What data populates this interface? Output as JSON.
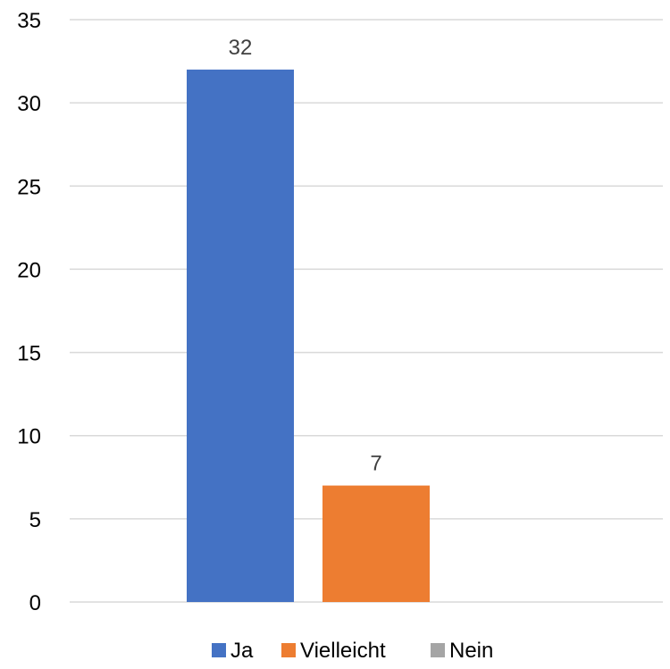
{
  "chart_data": {
    "type": "bar",
    "categories": [
      ""
    ],
    "series": [
      {
        "name": "Ja",
        "values": [
          32
        ],
        "color": "#4472C4"
      },
      {
        "name": "Vielleicht",
        "values": [
          7
        ],
        "color": "#ED7D31"
      },
      {
        "name": "Nein",
        "values": [
          0
        ],
        "color": "#A5A5A5"
      }
    ],
    "ylim": [
      0,
      35
    ],
    "yticks": [
      0,
      5,
      10,
      15,
      20,
      25,
      30,
      35
    ],
    "ytick_labels": [
      "0",
      "5",
      "10",
      "15",
      "20",
      "25",
      "30",
      "35"
    ],
    "data_labels": [
      "32",
      "7",
      ""
    ],
    "grid": true,
    "legend": "bottom",
    "title": "",
    "xlabel": "",
    "ylabel": ""
  }
}
